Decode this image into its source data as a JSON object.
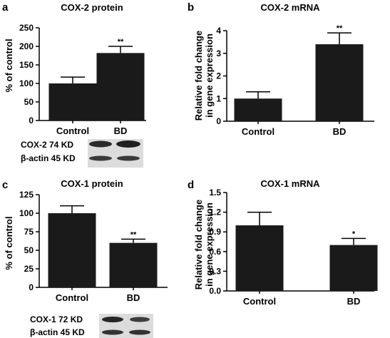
{
  "chart_data": [
    {
      "panel": "a",
      "type": "bar",
      "title": "COX-2 protein",
      "ylabel": "% of control",
      "xlabel": "",
      "categories": [
        "Control",
        "BD"
      ],
      "values": [
        100,
        182
      ],
      "errors": [
        17,
        18
      ],
      "significance": [
        "",
        "**"
      ],
      "ylim": [
        0,
        250
      ],
      "yticks": [
        0,
        50,
        100,
        150,
        200,
        250
      ],
      "ytick_labels": [
        "0",
        "50",
        "100",
        "150",
        "200",
        "250"
      ],
      "blot_labels": [
        "COX-2 74 KD",
        "β-actin  45 KD"
      ]
    },
    {
      "panel": "b",
      "type": "bar",
      "title": "COX-2 mRNA",
      "ylabel": [
        "Relative fold change",
        "in gene expression"
      ],
      "xlabel": "",
      "categories": [
        "Control",
        "BD"
      ],
      "values": [
        1.0,
        3.4
      ],
      "errors": [
        0.3,
        0.5
      ],
      "significance": [
        "",
        "**"
      ],
      "ylim": [
        0,
        4
      ],
      "yticks": [
        0,
        1,
        2,
        3,
        4
      ],
      "ytick_labels": [
        "0",
        "1",
        "2",
        "3",
        "4"
      ]
    },
    {
      "panel": "c",
      "type": "bar",
      "title": "COX-1 protein",
      "ylabel": "% of control",
      "xlabel": "",
      "categories": [
        "Control",
        "BD"
      ],
      "values": [
        100,
        60
      ],
      "errors": [
        10,
        5
      ],
      "significance": [
        "",
        "**"
      ],
      "ylim": [
        0,
        125
      ],
      "yticks": [
        0,
        25,
        50,
        75,
        100,
        125
      ],
      "ytick_labels": [
        "0",
        "25",
        "50",
        "75",
        "100",
        "125"
      ],
      "blot_labels": [
        "COX-1  72 KD",
        "β-actin  45 KD"
      ]
    },
    {
      "panel": "d",
      "type": "bar",
      "title": "COX-1 mRNA",
      "ylabel": [
        "Relative fold change",
        "in gene expression"
      ],
      "xlabel": "",
      "categories": [
        "Control",
        "BD"
      ],
      "values": [
        1.0,
        0.7
      ],
      "errors": [
        0.2,
        0.1
      ],
      "significance": [
        "",
        "*"
      ],
      "ylim": [
        0,
        1.5
      ],
      "yticks": [
        0,
        0.3,
        0.6,
        0.9,
        1.2,
        1.5
      ],
      "ytick_labels": [
        "0.0",
        "0.3",
        "0.6",
        "0.9",
        "1.2",
        "1.5"
      ]
    }
  ],
  "colors": {
    "bar": "#1a1a1a",
    "axis": "#000000",
    "blot_bg": "#dcdcdc",
    "band": "#2b2b2b"
  }
}
